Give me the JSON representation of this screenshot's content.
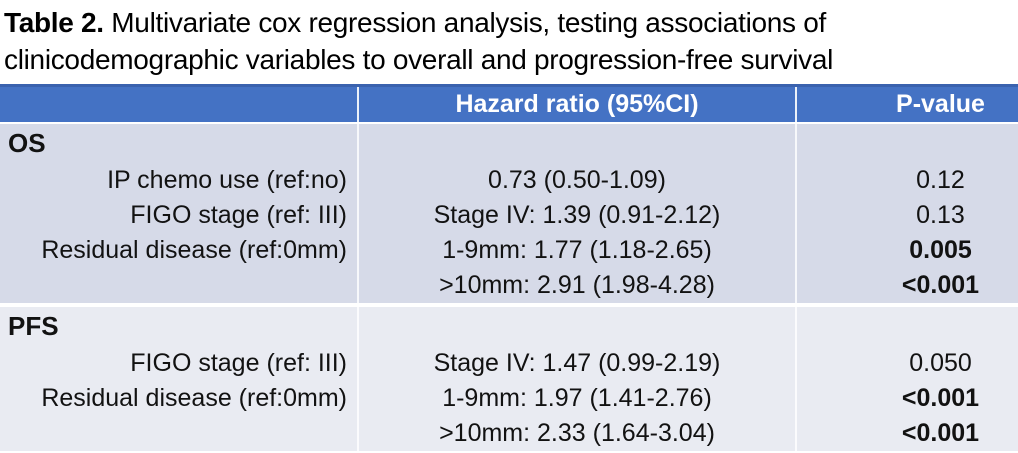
{
  "title": {
    "label": "Table 2.",
    "rest": " Multivariate cox regression analysis, testing associations of clinicodemographic variables to overall and progression-free survival"
  },
  "table": {
    "header": {
      "variable": "",
      "hazard_ratio": "Hazard ratio (95%CI)",
      "p_value": "P-value"
    },
    "sections": [
      {
        "name": "OS",
        "rows": [
          {
            "label": "IP chemo use (ref:no)",
            "hr": "0.73 (0.50-1.09)",
            "p": "0.12",
            "p_bold": false
          },
          {
            "label": "FIGO stage (ref: III)",
            "hr": "Stage IV: 1.39 (0.91-2.12)",
            "p": "0.13",
            "p_bold": false
          },
          {
            "label": "Residual disease (ref:0mm)",
            "hr": "1-9mm: 1.77 (1.18-2.65)",
            "p": "0.005",
            "p_bold": true
          },
          {
            "label": "",
            "hr": ">10mm: 2.91 (1.98-4.28)",
            "p": "<0.001",
            "p_bold": true
          }
        ]
      },
      {
        "name": "PFS",
        "rows": [
          {
            "label": "FIGO stage (ref: III)",
            "hr": "Stage IV: 1.47 (0.99-2.19)",
            "p": "0.050",
            "p_bold": false
          },
          {
            "label": "Residual disease (ref:0mm)",
            "hr": "1-9mm: 1.97 (1.41-2.76)",
            "p": "<0.001",
            "p_bold": true
          },
          {
            "label": "",
            "hr": ">10mm: 2.33 (1.64-3.04)",
            "p": "<0.001",
            "p_bold": true
          }
        ]
      }
    ]
  },
  "chart_data": {
    "type": "table",
    "title": "Table 2. Multivariate cox regression analysis, testing associations of clinicodemographic variables to overall and progression-free survival",
    "columns": [
      "",
      "Hazard ratio (95%CI)",
      "P-value"
    ],
    "rows": [
      [
        "OS",
        "",
        ""
      ],
      [
        "IP chemo use (ref:no)",
        "0.73 (0.50-1.09)",
        "0.12"
      ],
      [
        "FIGO stage (ref: III)",
        "Stage IV: 1.39 (0.91-2.12)",
        "0.13"
      ],
      [
        "Residual disease (ref:0mm)",
        "1-9mm: 1.77 (1.18-2.65)",
        "0.005"
      ],
      [
        "",
        ">10mm: 2.91 (1.98-4.28)",
        "<0.001"
      ],
      [
        "PFS",
        "",
        ""
      ],
      [
        "FIGO stage (ref: III)",
        "Stage IV: 1.47 (0.99-2.19)",
        "0.050"
      ],
      [
        "Residual disease (ref:0mm)",
        "1-9mm: 1.97 (1.41-2.76)",
        "<0.001"
      ],
      [
        "",
        ">10mm: 2.33 (1.64-3.04)",
        "<0.001"
      ]
    ]
  },
  "colors": {
    "header_bg": "#4472C4",
    "header_text": "#FFFFFF",
    "os_bg": "#D6DAE8",
    "pfs_bg": "#E9EBF2",
    "body_text": "#121212",
    "header_border_top": "#3A62AE"
  }
}
